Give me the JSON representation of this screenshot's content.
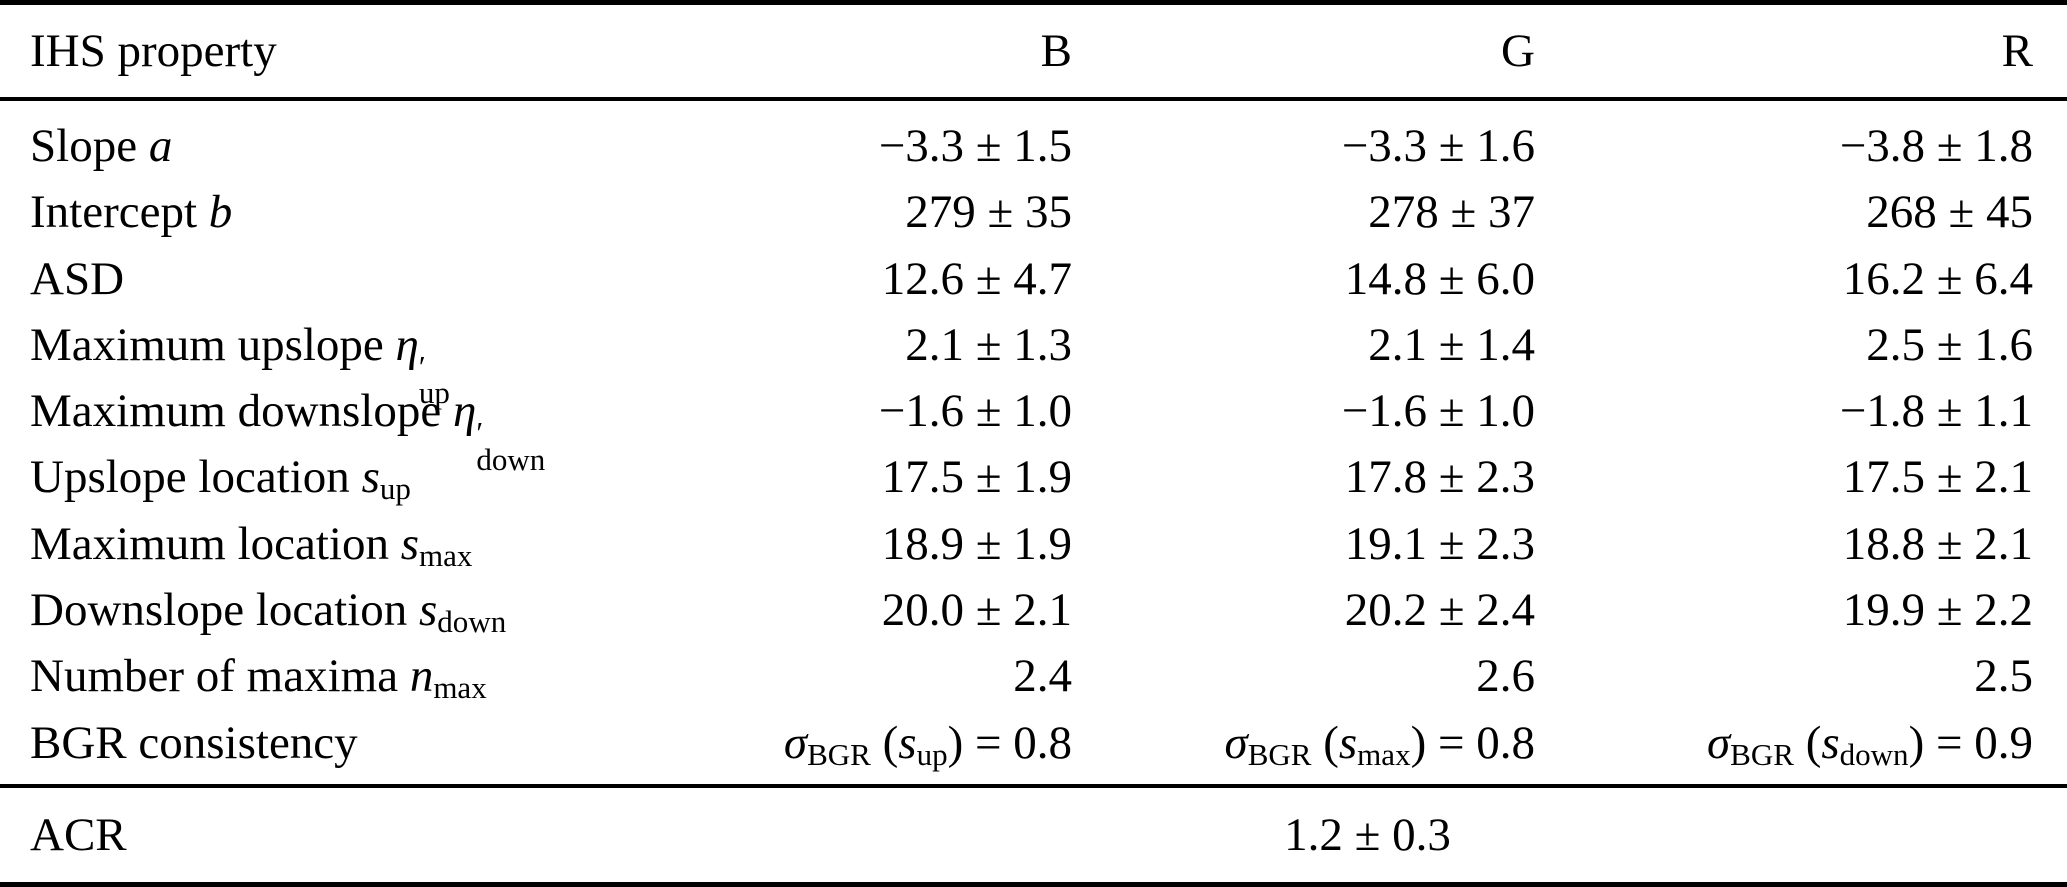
{
  "colors": {
    "background": "#ffffff",
    "text": "#000000",
    "rule": "#000000"
  },
  "table": {
    "header": {
      "property_label": "IHS property",
      "channels": [
        "B",
        "G",
        "R"
      ]
    },
    "rows": [
      {
        "label": [
          {
            "t": "Slope ",
            "k": "p"
          },
          {
            "t": "a",
            "k": "i"
          }
        ],
        "values": [
          [
            {
              "t": "−3.3 ± 1.5",
              "k": "p"
            }
          ],
          [
            {
              "t": "−3.3 ± 1.6",
              "k": "p"
            }
          ],
          [
            {
              "t": "−3.8 ± 1.8",
              "k": "p"
            }
          ]
        ]
      },
      {
        "label": [
          {
            "t": "Intercept ",
            "k": "p"
          },
          {
            "t": "b",
            "k": "i"
          }
        ],
        "values": [
          [
            {
              "t": "279 ± 35",
              "k": "p"
            }
          ],
          [
            {
              "t": "278 ± 37",
              "k": "p"
            }
          ],
          [
            {
              "t": "268 ± 45",
              "k": "p"
            }
          ]
        ]
      },
      {
        "label": [
          {
            "t": "ASD",
            "k": "p"
          }
        ],
        "values": [
          [
            {
              "t": "12.6 ± 4.7",
              "k": "p"
            }
          ],
          [
            {
              "t": "14.8 ± 6.0",
              "k": "p"
            }
          ],
          [
            {
              "t": "16.2 ± 6.4",
              "k": "p"
            }
          ]
        ]
      },
      {
        "label": [
          {
            "t": "Maximum upslope ",
            "k": "p"
          },
          {
            "t": "η",
            "k": "i"
          },
          {
            "k": "ss",
            "sup": "′",
            "sub": "up"
          }
        ],
        "values": [
          [
            {
              "t": "2.1 ± 1.3",
              "k": "p"
            }
          ],
          [
            {
              "t": "2.1 ± 1.4",
              "k": "p"
            }
          ],
          [
            {
              "t": "2.5 ± 1.6",
              "k": "p"
            }
          ]
        ]
      },
      {
        "label": [
          {
            "t": "Maximum downslope ",
            "k": "p"
          },
          {
            "t": "η",
            "k": "i"
          },
          {
            "k": "ss",
            "sup": "′",
            "sub": "down"
          }
        ],
        "values": [
          [
            {
              "t": "−1.6 ± 1.0",
              "k": "p"
            }
          ],
          [
            {
              "t": "−1.6 ± 1.0",
              "k": "p"
            }
          ],
          [
            {
              "t": "−1.8 ± 1.1",
              "k": "p"
            }
          ]
        ]
      },
      {
        "label": [
          {
            "t": "Upslope location ",
            "k": "p"
          },
          {
            "t": "s",
            "k": "i"
          },
          {
            "t": "up",
            "k": "sub"
          }
        ],
        "values": [
          [
            {
              "t": "17.5 ± 1.9",
              "k": "p"
            }
          ],
          [
            {
              "t": "17.8 ± 2.3",
              "k": "p"
            }
          ],
          [
            {
              "t": "17.5 ± 2.1",
              "k": "p"
            }
          ]
        ]
      },
      {
        "label": [
          {
            "t": "Maximum location ",
            "k": "p"
          },
          {
            "t": "s",
            "k": "i"
          },
          {
            "t": "max",
            "k": "sub"
          }
        ],
        "values": [
          [
            {
              "t": "18.9 ± 1.9",
              "k": "p"
            }
          ],
          [
            {
              "t": "19.1 ± 2.3",
              "k": "p"
            }
          ],
          [
            {
              "t": "18.8 ± 2.1",
              "k": "p"
            }
          ]
        ]
      },
      {
        "label": [
          {
            "t": "Downslope location ",
            "k": "p"
          },
          {
            "t": "s",
            "k": "i"
          },
          {
            "t": "down",
            "k": "sub"
          }
        ],
        "values": [
          [
            {
              "t": "20.0 ± 2.1",
              "k": "p"
            }
          ],
          [
            {
              "t": "20.2 ± 2.4",
              "k": "p"
            }
          ],
          [
            {
              "t": "19.9 ± 2.2",
              "k": "p"
            }
          ]
        ]
      },
      {
        "label": [
          {
            "t": "Number of maxima ",
            "k": "p"
          },
          {
            "t": "n",
            "k": "i"
          },
          {
            "t": "max",
            "k": "sub"
          }
        ],
        "values": [
          [
            {
              "t": "2.4",
              "k": "p"
            }
          ],
          [
            {
              "t": "2.6",
              "k": "p"
            }
          ],
          [
            {
              "t": "2.5",
              "k": "p"
            }
          ]
        ]
      },
      {
        "label": [
          {
            "t": "BGR consistency",
            "k": "p"
          }
        ],
        "values": [
          [
            {
              "t": "σ",
              "k": "i"
            },
            {
              "t": "BGR",
              "k": "sub"
            },
            {
              "t": " (",
              "k": "p"
            },
            {
              "t": "s",
              "k": "i"
            },
            {
              "t": "up",
              "k": "sub"
            },
            {
              "t": ") = 0.8",
              "k": "p"
            }
          ],
          [
            {
              "t": "σ",
              "k": "i"
            },
            {
              "t": "BGR",
              "k": "sub"
            },
            {
              "t": " (",
              "k": "p"
            },
            {
              "t": "s",
              "k": "i"
            },
            {
              "t": "max",
              "k": "sub"
            },
            {
              "t": ") = 0.8",
              "k": "p"
            }
          ],
          [
            {
              "t": "σ",
              "k": "i"
            },
            {
              "t": "BGR",
              "k": "sub"
            },
            {
              "t": " (",
              "k": "p"
            },
            {
              "t": "s",
              "k": "i"
            },
            {
              "t": "down",
              "k": "sub"
            },
            {
              "t": ") = 0.9",
              "k": "p"
            }
          ]
        ]
      }
    ],
    "footer": {
      "label": "ACR",
      "value": "1.2 ± 0.3"
    }
  }
}
